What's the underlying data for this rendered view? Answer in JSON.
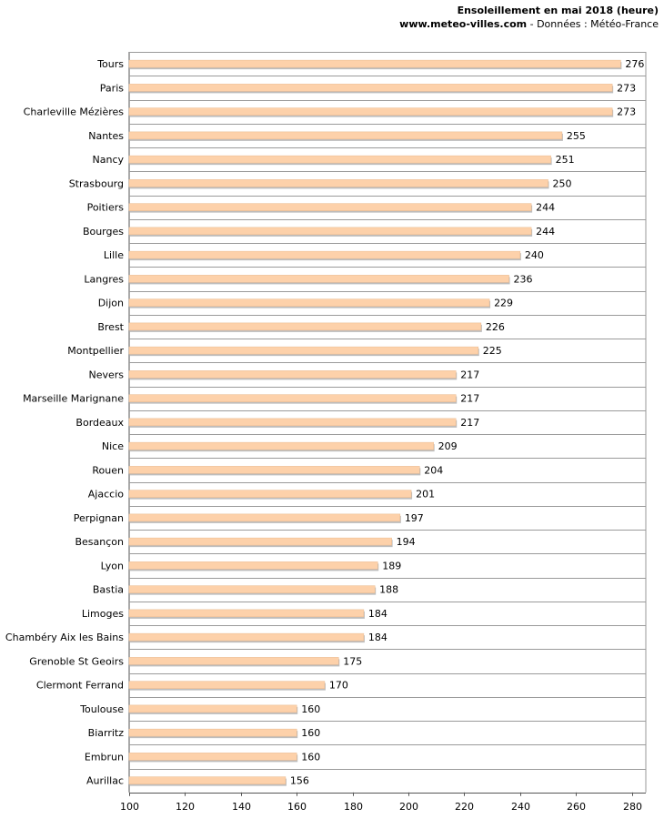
{
  "header": {
    "title": "Ensoleillement en mai 2018 (heure)",
    "site": "www.meteo-villes.com",
    "source": " - Données : Météo-France"
  },
  "colors": {
    "bar": "#fdd1aa",
    "bar_shadow": "#bdbdbd",
    "grid": "#9a9a9a",
    "axis": "#555555"
  },
  "chart_data": {
    "type": "bar",
    "orientation": "horizontal",
    "title": "Ensoleillement en mai 2018 (heure)",
    "xlabel": "",
    "ylabel": "",
    "xlim": [
      100,
      285
    ],
    "ticks": [
      100,
      120,
      140,
      160,
      180,
      200,
      220,
      240,
      260,
      280
    ],
    "categories": [
      "Tours",
      "Paris",
      "Charleville Mézières",
      "Nantes",
      "Nancy",
      "Strasbourg",
      "Poitiers",
      "Bourges",
      "Lille",
      "Langres",
      "Dijon",
      "Brest",
      "Montpellier",
      "Nevers",
      "Marseille Marignane",
      "Bordeaux",
      "Nice",
      "Rouen",
      "Ajaccio",
      "Perpignan",
      "Besançon",
      "Lyon",
      "Bastia",
      "Limoges",
      "Chambéry Aix les Bains",
      "Grenoble St Geoirs",
      "Clermont Ferrand",
      "Toulouse",
      "Biarritz",
      "Embrun",
      "Aurillac"
    ],
    "values": [
      276,
      273,
      273,
      255,
      251,
      250,
      244,
      244,
      240,
      236,
      229,
      226,
      225,
      217,
      217,
      217,
      209,
      204,
      201,
      197,
      194,
      189,
      188,
      184,
      184,
      175,
      170,
      160,
      160,
      160,
      156
    ]
  }
}
